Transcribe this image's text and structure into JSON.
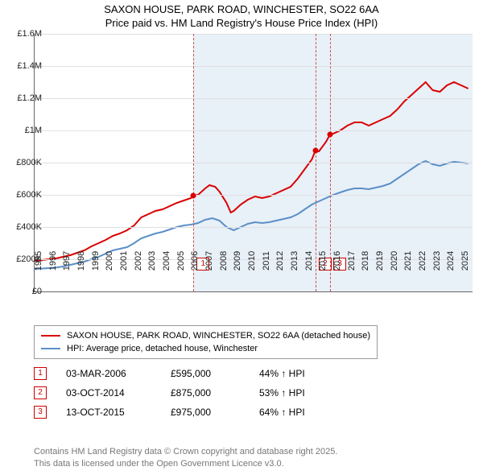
{
  "title_line1": "SAXON HOUSE, PARK ROAD, WINCHESTER, SO22 6AA",
  "title_line2": "Price paid vs. HM Land Registry's House Price Index (HPI)",
  "chart": {
    "type": "line",
    "background_color": "#ffffff",
    "shade_color": "#e8f0f8",
    "grid_color": "#e0e0e0",
    "axis_color": "#666666",
    "label_fontsize": 11,
    "xlim": [
      1995,
      2025.8
    ],
    "ylim": [
      0,
      1600000
    ],
    "ytick_step": 200000,
    "yticks": [
      "£0",
      "£200K",
      "£400K",
      "£600K",
      "£800K",
      "£1M",
      "£1.2M",
      "£1.4M",
      "£1.6M"
    ],
    "xticks": [
      1995,
      1996,
      1997,
      1998,
      1999,
      2000,
      2001,
      2002,
      2003,
      2004,
      2005,
      2006,
      2007,
      2008,
      2009,
      2010,
      2011,
      2012,
      2013,
      2014,
      2015,
      2016,
      2017,
      2018,
      2019,
      2020,
      2021,
      2022,
      2023,
      2024,
      2025
    ],
    "series": [
      {
        "name": "SAXON HOUSE, PARK ROAD, WINCHESTER, SO22 6AA (detached house)",
        "color": "#d90000",
        "width": 2,
        "data": [
          [
            1995.0,
            190000
          ],
          [
            1995.5,
            195000
          ],
          [
            1996.0,
            200000
          ],
          [
            1996.5,
            205000
          ],
          [
            1997.0,
            215000
          ],
          [
            1997.5,
            225000
          ],
          [
            1998.0,
            240000
          ],
          [
            1998.5,
            255000
          ],
          [
            1999.0,
            280000
          ],
          [
            1999.5,
            300000
          ],
          [
            2000.0,
            320000
          ],
          [
            2000.5,
            345000
          ],
          [
            2001.0,
            360000
          ],
          [
            2001.5,
            380000
          ],
          [
            2002.0,
            410000
          ],
          [
            2002.5,
            460000
          ],
          [
            2003.0,
            480000
          ],
          [
            2003.5,
            500000
          ],
          [
            2004.0,
            510000
          ],
          [
            2004.5,
            530000
          ],
          [
            2005.0,
            550000
          ],
          [
            2005.5,
            565000
          ],
          [
            2006.0,
            580000
          ],
          [
            2006.17,
            595000
          ],
          [
            2006.5,
            600000
          ],
          [
            2007.0,
            640000
          ],
          [
            2007.3,
            660000
          ],
          [
            2007.7,
            650000
          ],
          [
            2008.0,
            620000
          ],
          [
            2008.5,
            550000
          ],
          [
            2008.8,
            490000
          ],
          [
            2009.0,
            500000
          ],
          [
            2009.5,
            540000
          ],
          [
            2010.0,
            570000
          ],
          [
            2010.5,
            590000
          ],
          [
            2011.0,
            580000
          ],
          [
            2011.5,
            590000
          ],
          [
            2012.0,
            610000
          ],
          [
            2012.5,
            630000
          ],
          [
            2013.0,
            650000
          ],
          [
            2013.5,
            700000
          ],
          [
            2014.0,
            760000
          ],
          [
            2014.5,
            820000
          ],
          [
            2014.75,
            875000
          ],
          [
            2015.0,
            870000
          ],
          [
            2015.5,
            930000
          ],
          [
            2015.78,
            975000
          ],
          [
            2016.0,
            980000
          ],
          [
            2016.5,
            1000000
          ],
          [
            2017.0,
            1030000
          ],
          [
            2017.5,
            1050000
          ],
          [
            2018.0,
            1050000
          ],
          [
            2018.5,
            1030000
          ],
          [
            2019.0,
            1050000
          ],
          [
            2019.5,
            1070000
          ],
          [
            2020.0,
            1090000
          ],
          [
            2020.5,
            1130000
          ],
          [
            2021.0,
            1180000
          ],
          [
            2021.5,
            1220000
          ],
          [
            2022.0,
            1260000
          ],
          [
            2022.5,
            1300000
          ],
          [
            2023.0,
            1250000
          ],
          [
            2023.5,
            1240000
          ],
          [
            2024.0,
            1280000
          ],
          [
            2024.5,
            1300000
          ],
          [
            2025.0,
            1280000
          ],
          [
            2025.5,
            1260000
          ]
        ]
      },
      {
        "name": "HPI: Average price, detached house, Winchester",
        "color": "#5b8fc7",
        "width": 2,
        "data": [
          [
            1995.0,
            140000
          ],
          [
            1995.5,
            142000
          ],
          [
            1996.0,
            145000
          ],
          [
            1996.5,
            148000
          ],
          [
            1997.0,
            155000
          ],
          [
            1997.5,
            165000
          ],
          [
            1998.0,
            175000
          ],
          [
            1998.5,
            185000
          ],
          [
            1999.0,
            200000
          ],
          [
            1999.5,
            215000
          ],
          [
            2000.0,
            235000
          ],
          [
            2000.5,
            255000
          ],
          [
            2001.0,
            265000
          ],
          [
            2001.5,
            275000
          ],
          [
            2002.0,
            300000
          ],
          [
            2002.5,
            330000
          ],
          [
            2003.0,
            345000
          ],
          [
            2003.5,
            360000
          ],
          [
            2004.0,
            370000
          ],
          [
            2004.5,
            385000
          ],
          [
            2005.0,
            400000
          ],
          [
            2005.5,
            410000
          ],
          [
            2006.0,
            415000
          ],
          [
            2006.5,
            425000
          ],
          [
            2007.0,
            445000
          ],
          [
            2007.5,
            455000
          ],
          [
            2008.0,
            440000
          ],
          [
            2008.5,
            400000
          ],
          [
            2009.0,
            380000
          ],
          [
            2009.5,
            400000
          ],
          [
            2010.0,
            420000
          ],
          [
            2010.5,
            430000
          ],
          [
            2011.0,
            425000
          ],
          [
            2011.5,
            430000
          ],
          [
            2012.0,
            440000
          ],
          [
            2012.5,
            450000
          ],
          [
            2013.0,
            460000
          ],
          [
            2013.5,
            480000
          ],
          [
            2014.0,
            510000
          ],
          [
            2014.5,
            540000
          ],
          [
            2015.0,
            560000
          ],
          [
            2015.5,
            580000
          ],
          [
            2016.0,
            600000
          ],
          [
            2016.5,
            615000
          ],
          [
            2017.0,
            630000
          ],
          [
            2017.5,
            640000
          ],
          [
            2018.0,
            640000
          ],
          [
            2018.5,
            635000
          ],
          [
            2019.0,
            645000
          ],
          [
            2019.5,
            655000
          ],
          [
            2020.0,
            670000
          ],
          [
            2020.5,
            700000
          ],
          [
            2021.0,
            730000
          ],
          [
            2021.5,
            760000
          ],
          [
            2022.0,
            790000
          ],
          [
            2022.5,
            810000
          ],
          [
            2023.0,
            790000
          ],
          [
            2023.5,
            780000
          ],
          [
            2024.0,
            795000
          ],
          [
            2024.5,
            805000
          ],
          [
            2025.0,
            800000
          ],
          [
            2025.5,
            795000
          ]
        ]
      }
    ],
    "markers": [
      {
        "n": "1",
        "x": 2006.17,
        "y": 595000,
        "badge_y": 130000
      },
      {
        "n": "2",
        "x": 2014.75,
        "y": 875000,
        "badge_y": 130000
      },
      {
        "n": "3",
        "x": 2015.78,
        "y": 975000,
        "badge_y": 130000
      }
    ]
  },
  "legend": {
    "items": [
      {
        "color": "#d90000",
        "label": "SAXON HOUSE, PARK ROAD, WINCHESTER, SO22 6AA (detached house)"
      },
      {
        "color": "#5b8fc7",
        "label": "HPI: Average price, detached house, Winchester"
      }
    ]
  },
  "transactions": [
    {
      "n": "1",
      "date": "03-MAR-2006",
      "price": "£595,000",
      "pct": "44% ↑ HPI"
    },
    {
      "n": "2",
      "date": "03-OCT-2014",
      "price": "£875,000",
      "pct": "53% ↑ HPI"
    },
    {
      "n": "3",
      "date": "13-OCT-2015",
      "price": "£975,000",
      "pct": "64% ↑ HPI"
    }
  ],
  "footer_line1": "Contains HM Land Registry data © Crown copyright and database right 2025.",
  "footer_line2": "This data is licensed under the Open Government Licence v3.0."
}
